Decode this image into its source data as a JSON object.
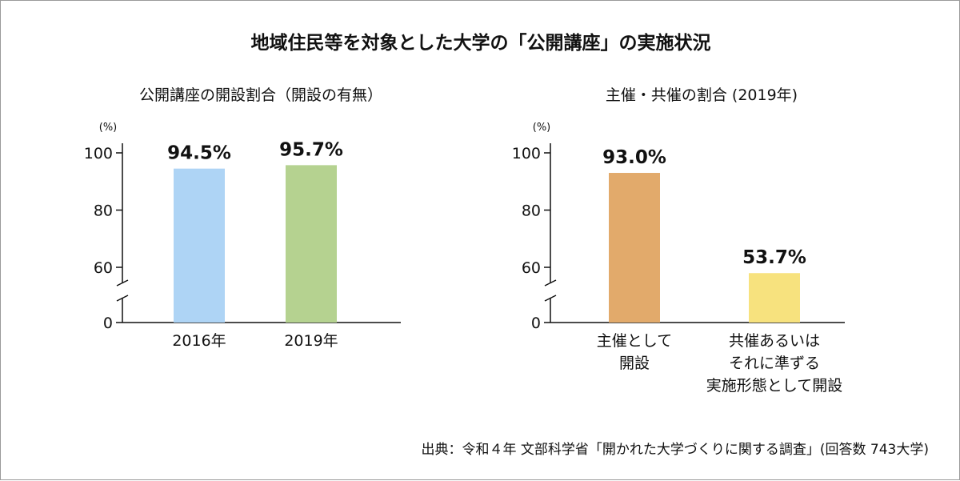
{
  "title": "地域住民等を対象とした大学の「公開講座」の実施状況",
  "source": "出典：令和４年 文部科学省「開かれた大学づくりに関する調査」(回答数 743大学)",
  "chart_data": [
    {
      "type": "bar",
      "title": "公開講座の開設割合（開設の有無）",
      "unit_label": "(%)",
      "categories": [
        "2016年",
        "2019年"
      ],
      "values": [
        94.5,
        95.7
      ],
      "value_labels": [
        "94.5%",
        "95.7%"
      ],
      "colors": [
        "#aed4f5",
        "#b5d290"
      ],
      "ylim": [
        0,
        100
      ],
      "yticks": [
        "0",
        "60",
        "80",
        "100"
      ],
      "y_axis": "broken (0 to 60)"
    },
    {
      "type": "bar",
      "title": "主催・共催の割合 (2019年)",
      "unit_label": "(%)",
      "categories": [
        [
          "主催として",
          "開設"
        ],
        [
          "共催あるいは",
          "それに準ずる",
          "実施形態として開設"
        ]
      ],
      "values": [
        93.0,
        53.7
      ],
      "value_labels": [
        "93.0%",
        "53.7%"
      ],
      "colors": [
        "#e2aa6b",
        "#f7e27e"
      ],
      "ylim": [
        0,
        100
      ],
      "yticks": [
        "0",
        "60",
        "80",
        "100"
      ],
      "y_axis": "broken (0 to 60)"
    }
  ]
}
